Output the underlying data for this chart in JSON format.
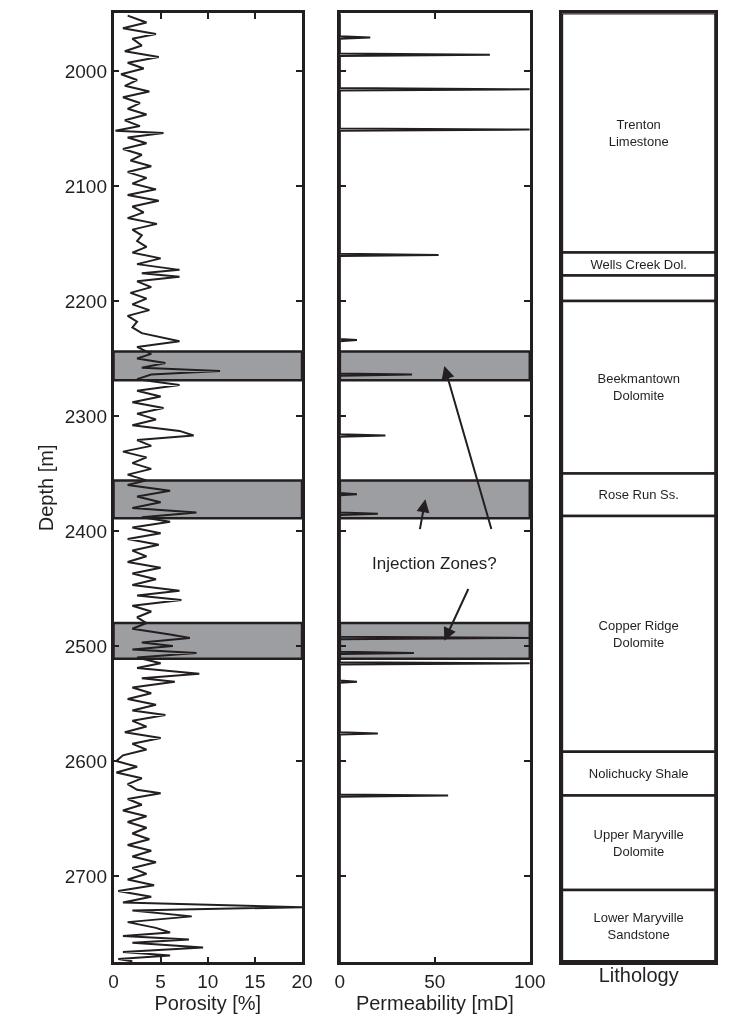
{
  "chart_data": [
    {
      "type": "line",
      "orientation": "horizontal",
      "xlabel": "Porosity [%]",
      "ylabel": "Depth [m]",
      "xlim": [
        0,
        20
      ],
      "xticks": [
        0,
        5,
        10,
        15,
        20
      ],
      "ylim": [
        2775,
        1950
      ],
      "yticks": [
        2000,
        2100,
        2200,
        2300,
        2400,
        2500,
        2600,
        2700
      ],
      "grid": false,
      "line_style": "solid",
      "series": [
        {
          "color": "#231f20",
          "x": [
            1952,
            1958,
            1963,
            1968,
            1972,
            1978,
            1983,
            1988,
            1993,
            1998,
            2003,
            2008,
            2013,
            2018,
            2023,
            2028,
            2033,
            2038,
            2043,
            2048,
            2052,
            2054,
            2058,
            2063,
            2068,
            2073,
            2078,
            2083,
            2088,
            2093,
            2098,
            2103,
            2108,
            2113,
            2118,
            2123,
            2128,
            2133,
            2138,
            2143,
            2148,
            2153,
            2158,
            2163,
            2168,
            2173,
            2176,
            2179,
            2183,
            2188,
            2193,
            2198,
            2203,
            2208,
            2213,
            2218,
            2223,
            2228,
            2235,
            2240,
            2246,
            2250,
            2254,
            2258,
            2261,
            2264,
            2268,
            2273,
            2278,
            2283,
            2288,
            2293,
            2298,
            2303,
            2308,
            2313,
            2317,
            2321,
            2326,
            2331,
            2336,
            2341,
            2346,
            2351,
            2356,
            2360,
            2365,
            2370,
            2375,
            2380,
            2384,
            2388,
            2392,
            2397,
            2402,
            2407,
            2412,
            2417,
            2422,
            2427,
            2432,
            2437,
            2442,
            2447,
            2452,
            2456,
            2460,
            2465,
            2470,
            2475,
            2480,
            2485,
            2490,
            2493,
            2497,
            2500,
            2503,
            2506,
            2510,
            2515,
            2519,
            2524,
            2528,
            2531,
            2536,
            2541,
            2546,
            2551,
            2556,
            2560,
            2565,
            2570,
            2575,
            2580,
            2585,
            2590,
            2595,
            2600,
            2605,
            2610,
            2615,
            2620,
            2625,
            2628,
            2633,
            2638,
            2643,
            2648,
            2653,
            2658,
            2663,
            2668,
            2673,
            2678,
            2683,
            2688,
            2693,
            2698,
            2703,
            2708,
            2713,
            2718,
            2723,
            2727,
            2730,
            2735,
            2740,
            2745,
            2749,
            2752,
            2755,
            2758,
            2762,
            2766,
            2769,
            2772,
            2774
          ],
          "values": [
            1.5,
            3.5,
            1,
            4.5,
            2,
            3,
            1.2,
            4.8,
            1.5,
            3.2,
            0.8,
            2.5,
            1.2,
            3.8,
            1,
            2.8,
            1.5,
            3.5,
            1.2,
            2.8,
            0.2,
            5.3,
            1.5,
            3.5,
            1,
            3,
            1.8,
            4,
            1.5,
            3.5,
            2,
            4.5,
            1.5,
            4.8,
            2,
            3.2,
            1.5,
            4.6,
            2,
            3,
            2.5,
            3.5,
            2,
            5,
            2.5,
            7,
            3,
            7,
            2.5,
            4,
            1.8,
            3.5,
            2,
            3.8,
            1.5,
            2.5,
            2,
            3,
            7,
            2.5,
            4,
            2.5,
            5.5,
            3,
            11.3,
            4,
            2.5,
            7,
            2.5,
            5,
            2,
            5.3,
            2.5,
            4.5,
            2,
            7,
            8.5,
            2.5,
            4,
            1,
            3.5,
            2,
            4,
            1.5,
            3.5,
            1.5,
            6,
            2.5,
            5,
            2,
            8.8,
            3,
            6,
            2,
            5,
            1.5,
            4.8,
            2,
            3.5,
            1.5,
            5,
            2,
            4.5,
            2,
            7,
            2.5,
            7.2,
            2,
            4,
            2.5,
            3.5,
            2,
            6,
            8.1,
            3,
            6.3,
            2,
            8.8,
            2.5,
            5,
            2.5,
            9.1,
            3,
            6.5,
            2,
            4,
            1.5,
            4.5,
            2,
            5.5,
            2,
            3.5,
            1.2,
            5,
            2,
            3.5,
            1,
            0.3,
            2.5,
            0.3,
            3,
            1.5,
            2.5,
            5,
            1.5,
            3,
            1,
            3.5,
            1.5,
            3.5,
            2,
            3.8,
            1.5,
            4,
            2,
            4.5,
            2,
            3.5,
            1.5,
            4.3,
            0.5,
            4,
            1,
            20,
            2,
            8.3,
            1.5,
            4.5,
            6,
            1,
            8,
            2,
            9.5,
            1,
            6,
            0.5,
            2
          ]
        }
      ],
      "bands": [
        {
          "axis": "y",
          "from": 2244,
          "to": 2269,
          "color": "#9d9ea2"
        },
        {
          "axis": "y",
          "from": 2356,
          "to": 2389,
          "color": "#9d9ea2"
        },
        {
          "axis": "y",
          "from": 2480,
          "to": 2511,
          "color": "#9d9ea2"
        }
      ]
    },
    {
      "type": "line",
      "orientation": "horizontal",
      "xlabel": "Permeability [mD]",
      "xlim": [
        0,
        100
      ],
      "xticks": [
        0,
        50,
        100
      ],
      "ylim": [
        2775,
        1950
      ],
      "yticks": [
        2000,
        2100,
        2200,
        2300,
        2400,
        2500,
        2600,
        2700
      ],
      "tick_labels": "x",
      "grid": false,
      "line_style": "solid",
      "series": [
        {
          "color": "#231f20",
          "x": [
            1950,
            1970,
            1971,
            1972,
            1985,
            1986,
            1987,
            2015,
            2016,
            2017,
            2050,
            2051,
            2052,
            2159,
            2160,
            2161,
            2233,
            2234,
            2235,
            2263,
            2264,
            2265,
            2316,
            2317,
            2318,
            2367,
            2368,
            2369,
            2384,
            2385,
            2386,
            2492,
            2493,
            2494,
            2505,
            2506,
            2507,
            2514,
            2515,
            2516,
            2530,
            2531,
            2532,
            2575,
            2576,
            2577,
            2629,
            2630,
            2631,
            2775
          ],
          "values": [
            0,
            0,
            16,
            0,
            0,
            79,
            0,
            0,
            100,
            0,
            0,
            100,
            0,
            0,
            52,
            0,
            0,
            9,
            0,
            0,
            38,
            0,
            0,
            24,
            0,
            0,
            9,
            0,
            0,
            20,
            0,
            0,
            100,
            0,
            0,
            39,
            0,
            0,
            100,
            0,
            0,
            9,
            0,
            0,
            20,
            0,
            0,
            57,
            0,
            0
          ]
        }
      ],
      "bands": [
        {
          "axis": "y",
          "from": 2244,
          "to": 2269,
          "color": "#9d9ea2"
        },
        {
          "axis": "y",
          "from": 2356,
          "to": 2389,
          "color": "#9d9ea2"
        },
        {
          "axis": "y",
          "from": 2480,
          "to": 2511,
          "color": "#9d9ea2"
        }
      ],
      "annotations": [
        {
          "text": "Injection Zones?",
          "x": 55,
          "y": 2495.5
        }
      ]
    },
    {
      "type": "bar",
      "xlabel": "Lithology",
      "categories": [
        null
      ],
      "ylim": [
        2775,
        1950
      ],
      "tick_labels": false,
      "series": [
        {
          "name": "Trenton\nLimestone",
          "color": "#ffffff",
          "base": [
            1950
          ],
          "values": [
            208
          ]
        },
        {
          "name": "Wells Creek Dol.",
          "color": "#ffffff",
          "base": [
            2158
          ],
          "values": [
            20
          ]
        },
        {
          "color": "#ffffff",
          "base": [
            2178
          ],
          "values": [
            22
          ]
        },
        {
          "name": "Beekmantown\nDolomite",
          "color": "#ffffff",
          "base": [
            2200
          ],
          "values": [
            150
          ]
        },
        {
          "name": "Rose Run Ss.",
          "color": "#ffffff",
          "base": [
            2350
          ],
          "values": [
            37
          ]
        },
        {
          "name": "Copper Ridge\nDolomite",
          "color": "#ffffff",
          "base": [
            2387
          ],
          "values": [
            205
          ]
        },
        {
          "name": "Nolichucky Shale",
          "color": "#ffffff",
          "base": [
            2592
          ],
          "values": [
            38
          ]
        },
        {
          "name": "Upper Maryville\nDolomite",
          "color": "#ffffff",
          "base": [
            2630
          ],
          "values": [
            82
          ]
        },
        {
          "name": "Lower Maryville\nSandstone",
          "color": "#ffffff",
          "base": [
            2712
          ],
          "values": [
            62
          ]
        }
      ]
    }
  ]
}
